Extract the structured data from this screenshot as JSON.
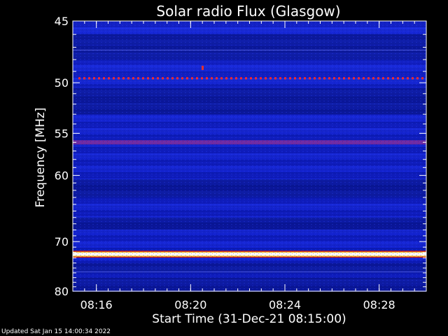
{
  "chart_data": {
    "type": "heatmap",
    "title": "Solar radio Flux (Glasgow)",
    "xlabel": "Start Time (31-Dec-21 08:15:00)",
    "ylabel": "Frequency [MHz]",
    "x_ticks": [
      "08:16",
      "08:20",
      "08:24",
      "08:28"
    ],
    "y_ticks": [
      45,
      50,
      55,
      60,
      70,
      80
    ],
    "y_scale": "reciprocal",
    "ylim": [
      45,
      80
    ],
    "xlim": [
      "08:15:00",
      "08:30:00"
    ],
    "bright_bands_mhz": [
      {
        "name": "strong emission line",
        "center": 72.3,
        "color": "#ffffff"
      },
      {
        "name": "interference dotted line",
        "center": 49.6,
        "color": "#ff2a2a"
      },
      {
        "name": "warm band",
        "center": 56.0,
        "color": "#c0307a"
      }
    ]
  },
  "footer": {
    "updated": "Updated Sat Jan 15 14:00:34 2022"
  }
}
